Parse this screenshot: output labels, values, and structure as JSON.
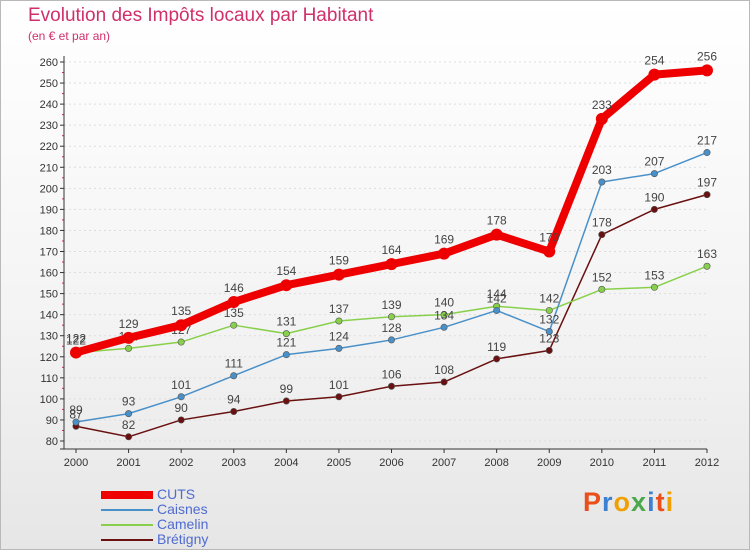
{
  "header": {
    "title": "Evolution des Impôts locaux par Habitant",
    "subtitle": "(en € et par an)"
  },
  "brand": {
    "text": "Proxiti",
    "letter_colors": [
      "#e94e1b",
      "#3d7fd0",
      "#f0a000",
      "#4aa84a",
      "#3d7fd0",
      "#e94e1b",
      "#f0a000"
    ]
  },
  "colors": {
    "title": "#d0306a",
    "axis": "#333333",
    "grid": "#dddddd",
    "tick_label": "#333333"
  },
  "chart_data": {
    "type": "line",
    "title": "Evolution des Impôts locaux par Habitant",
    "ylabel": "(en € et par an)",
    "xlabel": "",
    "x": [
      "2000",
      "2001",
      "2002",
      "2003",
      "2004",
      "2005",
      "2006",
      "2007",
      "2008",
      "2009",
      "2010",
      "2011",
      "2012"
    ],
    "ylim": [
      80,
      260
    ],
    "yticks": [
      80,
      90,
      100,
      110,
      120,
      130,
      140,
      150,
      160,
      170,
      180,
      190,
      200,
      210,
      220,
      230,
      240,
      250,
      260
    ],
    "legend_position": "bottom-left",
    "series": [
      {
        "name": "CUTS",
        "color": "#ee0000",
        "values": [
          122,
          129,
          135,
          146,
          154,
          159,
          164,
          169,
          178,
          170,
          233,
          254,
          256
        ]
      },
      {
        "name": "Caisnes",
        "color": "#4a90c8",
        "values": [
          89,
          93,
          101,
          111,
          121,
          124,
          128,
          134,
          142,
          132,
          203,
          207,
          217
        ]
      },
      {
        "name": "Camelin",
        "color": "#88d04c",
        "values": [
          122,
          124,
          127,
          135,
          131,
          137,
          139,
          140,
          144,
          142,
          152,
          153,
          163
        ]
      },
      {
        "name": "Brétigny",
        "color": "#6a1010",
        "values": [
          87,
          82,
          90,
          94,
          99,
          101,
          106,
          108,
          119,
          123,
          178,
          190,
          197
        ]
      }
    ]
  }
}
